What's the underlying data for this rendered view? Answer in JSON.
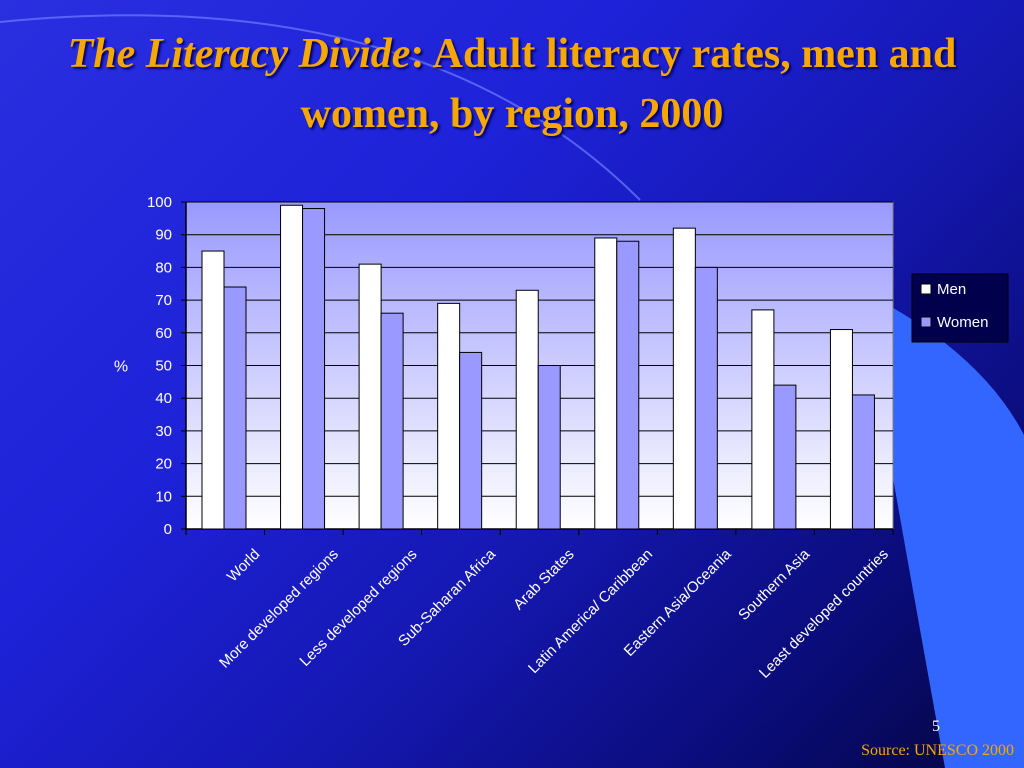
{
  "slide": {
    "title_italic": "The Literacy Divide",
    "title_rest": ": Adult literacy rates, men and women, by region, 2000",
    "page_number": "5",
    "source": "Source: UNESCO 2000",
    "colors": {
      "title": "#f7a800",
      "plot_bg": "#9999ff",
      "men_bar": "#ffffff",
      "women_bar": "#9999ff",
      "grid": "#000000"
    }
  },
  "chart_data": {
    "type": "bar",
    "categories": [
      "World",
      "More developed regions",
      "Less developed regions",
      "Sub-Saharan Africa",
      "Arab States",
      "Latin America/ Caribbean",
      "Eastern Asia/Oceania",
      "Southern Asia",
      "Least developed countries"
    ],
    "series": [
      {
        "name": "Men",
        "color": "#ffffff",
        "values": [
          85,
          99,
          81,
          69,
          73,
          89,
          92,
          67,
          61
        ]
      },
      {
        "name": "Women",
        "color": "#9999ff",
        "values": [
          74,
          98,
          66,
          54,
          50,
          88,
          80,
          44,
          41
        ]
      }
    ],
    "ylabel": "%",
    "ylim": [
      0,
      100
    ],
    "yticks": [
      0,
      10,
      20,
      30,
      40,
      50,
      60,
      70,
      80,
      90,
      100
    ],
    "grid": true,
    "legend": "right"
  }
}
